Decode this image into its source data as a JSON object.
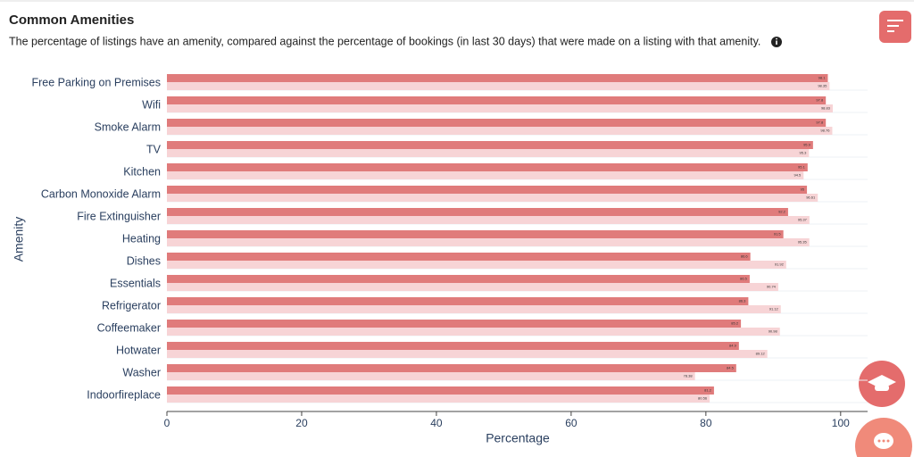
{
  "header": {
    "title": "Common Amenities",
    "subtitle": "The percentage of listings have an amenity, compared against the percentage of bookings (in last 30 days) that were made on a listing with that amenity."
  },
  "chart_data": {
    "type": "barh",
    "categories": [
      "Free Parking on Premises",
      "Wifi",
      "Smoke Alarm",
      "TV",
      "Kitchen",
      "Carbon Monoxide Alarm",
      "Fire Extinguisher",
      "Heating",
      "Dishes",
      "Essentials",
      "Refrigerator",
      "Coffeemaker",
      "Hotwater",
      "Washer",
      "Indoorfireplace"
    ],
    "series": [
      {
        "color": "#e07b7b",
        "values": [
          98.1,
          97.8,
          97.8,
          95.9,
          95.1,
          95.0,
          92.2,
          91.5,
          86.6,
          86.5,
          86.3,
          85.2,
          84.9,
          84.5,
          81.2
        ]
      },
      {
        "color": "#f7d4d6",
        "values": [
          98.35,
          98.83,
          98.76,
          95.3,
          94.5,
          96.61,
          95.37,
          95.35,
          91.92,
          90.74,
          91.12,
          90.98,
          89.12,
          78.38,
          80.56
        ]
      }
    ],
    "xlabel": "Percentage",
    "ylabel": "Amenity",
    "xlim": [
      0,
      104
    ],
    "xticks": [
      0,
      20,
      40,
      60,
      80,
      100
    ]
  }
}
